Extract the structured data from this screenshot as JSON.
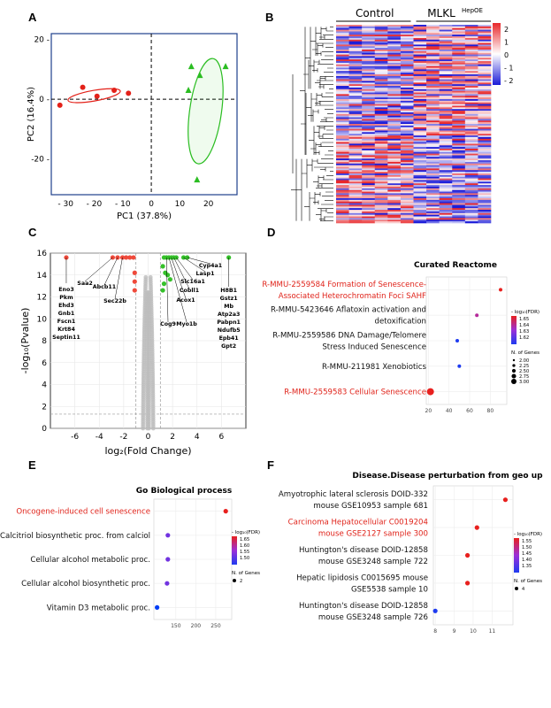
{
  "panels": {
    "A": {
      "letter": "A",
      "chart_data": {
        "type": "scatter",
        "xlabel": "PC1 (37.8%)",
        "ylabel": "PC2 (16.4%)",
        "xlim": [
          -35,
          30
        ],
        "ylim": [
          -32,
          22
        ],
        "xticks": [
          "- 30",
          "- 20",
          "- 10",
          "0",
          "10",
          "20"
        ],
        "yticks": [
          "20 -",
          "0 -",
          "-20 -"
        ],
        "series": [
          {
            "name": "Control",
            "color": "#e32119",
            "points": [
              [
                -32,
                -2
              ],
              [
                -24,
                4
              ],
              [
                -13,
                3
              ],
              [
                -8,
                2
              ],
              [
                -19,
                1
              ]
            ]
          },
          {
            "name": "MLKL HepOE",
            "color": "#2bbd22",
            "points": [
              [
                13,
                3
              ],
              [
                17,
                8
              ],
              [
                14,
                11
              ],
              [
                26,
                11
              ],
              [
                16,
                -27
              ]
            ]
          }
        ]
      }
    },
    "B": {
      "letter": "B",
      "chart_data": {
        "type": "heatmap",
        "groups": [
          "Control",
          "MLKL"
        ],
        "group2_superscript": "HepOE",
        "legend_ticks": [
          "2",
          "1",
          "0",
          "- 1",
          "- 2"
        ],
        "colors": {
          "high": "#e8282b",
          "mid": "#ffffff",
          "low": "#1b1bd8"
        }
      }
    },
    "C": {
      "letter": "C",
      "chart_data": {
        "type": "scatter",
        "xlabel": "log₂(Fold Change)",
        "ylabel": "-log₁₀(Pvalue)",
        "xlim": [
          -8,
          8
        ],
        "ylim": [
          0,
          16
        ],
        "xticks": [
          "-6",
          "-4",
          "-2",
          "0",
          "2",
          "4",
          "6"
        ],
        "yticks": [
          "0",
          "2",
          "4",
          "6",
          "8",
          "10",
          "12",
          "14",
          "16"
        ],
        "up_genes": [
          "Cyp4a1",
          "Lasp1",
          "Slc16a1",
          "Cobll1",
          "Acox1",
          "Cog9",
          "Myo1b",
          "H8B1",
          "Gstz1",
          "Mb",
          "Atp2a3",
          "Pabpn1",
          "Ndufb5",
          "Epb41",
          "Gpt2"
        ],
        "down_genes": [
          "Saa2",
          "Abcb11",
          "Sec22b",
          "Eno3",
          "Pkm",
          "Ehd3",
          "Gnb1",
          "Fscn1",
          "Krt84",
          "Septin11"
        ],
        "sig_up_points": [
          [
            1.3,
            15.6
          ],
          [
            1.5,
            15.6
          ],
          [
            1.7,
            15.6
          ],
          [
            1.9,
            15.6
          ],
          [
            2.1,
            15.6
          ],
          [
            2.3,
            15.6
          ],
          [
            2.9,
            15.6
          ],
          [
            3.2,
            15.6
          ],
          [
            6.6,
            15.6
          ],
          [
            1.2,
            14.8
          ],
          [
            1.4,
            14.2
          ],
          [
            1.6,
            14
          ],
          [
            1.8,
            13.6
          ],
          [
            1.3,
            13.2
          ],
          [
            1.2,
            12.6
          ]
        ],
        "sig_down_points": [
          [
            -6.7,
            15.6
          ],
          [
            -2.9,
            15.6
          ],
          [
            -2.5,
            15.6
          ],
          [
            -2.1,
            15.6
          ],
          [
            -1.8,
            15.6
          ],
          [
            -1.5,
            15.6
          ],
          [
            -1.2,
            15.6
          ],
          [
            -1.1,
            14.2
          ],
          [
            -1.1,
            13.4
          ],
          [
            -1.1,
            12.6
          ]
        ]
      }
    },
    "D": {
      "letter": "D",
      "chart_data": {
        "type": "scatter",
        "title": "Curated Reactome",
        "categories": [
          {
            "label": [
              "R-MMU-2559584 Formation of Senescence-",
              "Associated Heterochromatin Foci SAHF"
            ],
            "highlight": true
          },
          {
            "label": [
              "R-MMU-5423646 Aflatoxin activation and",
              "detoxification"
            ],
            "highlight": false
          },
          {
            "label": [
              "R-MMU-2559586 DNA Damage/Telomere",
              "Stress Induced Senescence"
            ],
            "highlight": false
          },
          {
            "label": [
              "R-MMU-211981 Xenobiotics"
            ],
            "highlight": false
          },
          {
            "label": [
              "R-MMU-2559583 Cellular Senescence"
            ],
            "highlight": true
          }
        ],
        "x": [
          90,
          67,
          48,
          50,
          22
        ],
        "fdr": [
          1.65,
          1.64,
          1.62,
          1.62,
          1.65
        ],
        "genes": [
          2.0,
          2.0,
          2.0,
          2.0,
          3.0
        ],
        "xticks": [
          "20",
          "40",
          "60",
          "80"
        ],
        "xlim": [
          18,
          96
        ],
        "legend_fdr_title": "- log₁₀(FDR)",
        "legend_fdr_ticks": [
          "1.65",
          "1.64",
          "1.63",
          "1.62"
        ],
        "legend_genes_title": "N. of Genes",
        "legend_genes_ticks": [
          "2.00",
          "2.25",
          "2.50",
          "2.75",
          "3.00"
        ]
      }
    },
    "E": {
      "letter": "E",
      "chart_data": {
        "type": "scatter",
        "title": "Go Biological process",
        "categories": [
          {
            "label": [
              "Oncogene-induced cell senescence"
            ],
            "highlight": true
          },
          {
            "label": [
              "Calcitriol biosynthetic proc. from calciol"
            ],
            "highlight": false
          },
          {
            "label": [
              "Cellular alcohol metabolic proc."
            ],
            "highlight": false
          },
          {
            "label": [
              "Cellular alcohol biosynthetic proc."
            ],
            "highlight": false
          },
          {
            "label": [
              "Vitamin D3 metabolic proc."
            ],
            "highlight": false
          }
        ],
        "x": [
          275,
          130,
          130,
          128,
          103
        ],
        "fdr": [
          1.65,
          1.55,
          1.55,
          1.55,
          1.48
        ],
        "genes": [
          2,
          2,
          2,
          2,
          2
        ],
        "xticks": [
          "150",
          "200",
          "250"
        ],
        "xlim": [
          95,
          290
        ],
        "legend_fdr_title": "- log₁₀(FDR)",
        "legend_fdr_ticks": [
          "1.65",
          "1.60",
          "1.55",
          "1.50"
        ],
        "legend_genes_title": "N. of Genes",
        "legend_genes_ticks": [
          "2"
        ]
      }
    },
    "F": {
      "letter": "F",
      "chart_data": {
        "type": "scatter",
        "title": "Disease.Disease perturbation from geo up",
        "categories": [
          {
            "label": [
              "Amyotrophic lateral sclerosis DOID-332",
              "mouse GSE10953 sample 681"
            ],
            "highlight": false
          },
          {
            "label": [
              "Carcinoma Hepatocellular C0019204",
              "mouse GSE2127 sample 300"
            ],
            "highlight": true
          },
          {
            "label": [
              "Huntington's disease DOID-12858",
              "mouse GSE3248 sample 722"
            ],
            "highlight": false
          },
          {
            "label": [
              "Hepatic lipidosis C0015695 mouse",
              "GSE5538 sample 10"
            ],
            "highlight": false
          },
          {
            "label": [
              "Huntington's disease DOID-12858",
              "mouse GSE3248 sample 726"
            ],
            "highlight": false
          }
        ],
        "x": [
          11.7,
          10.2,
          9.7,
          9.7,
          8.0
        ],
        "fdr": [
          1.55,
          1.55,
          1.55,
          1.55,
          1.35
        ],
        "genes": [
          4,
          4,
          4,
          4,
          4
        ],
        "xticks": [
          "8",
          "9",
          "10",
          "11"
        ],
        "xlim": [
          7.9,
          12.1
        ],
        "legend_fdr_title": "- log₁₀(FDR)",
        "legend_fdr_ticks": [
          "1.55",
          "1.50",
          "1.45",
          "1.40",
          "1.35"
        ],
        "legend_genes_title": "N. of Genes",
        "legend_genes_ticks": [
          "4"
        ]
      }
    }
  }
}
